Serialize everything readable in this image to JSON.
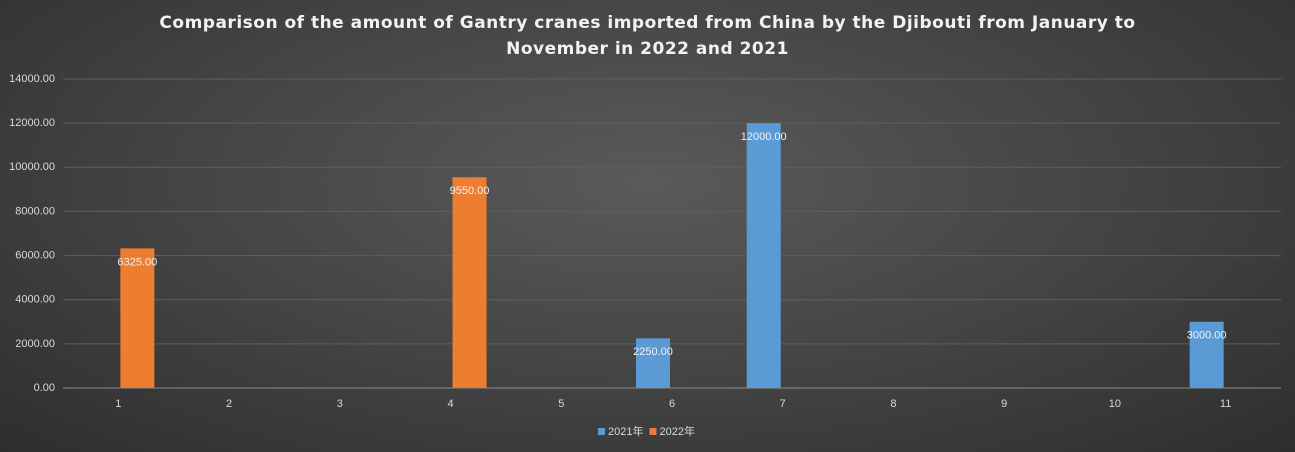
{
  "chart_data": {
    "type": "bar",
    "title": "Comparison of the amount of Gantry cranes imported from China by the Djibouti from January to November in 2022 and 2021",
    "categories": [
      "1",
      "2",
      "3",
      "4",
      "5",
      "6",
      "7",
      "8",
      "9",
      "10",
      "11"
    ],
    "series": [
      {
        "name": "2021年",
        "color": "#5b9bd5",
        "values": [
          null,
          null,
          null,
          null,
          null,
          2250,
          12000,
          null,
          null,
          null,
          3000
        ],
        "value_labels": [
          null,
          null,
          null,
          null,
          null,
          "2250.00",
          "12000.00",
          null,
          null,
          null,
          "3000.00"
        ]
      },
      {
        "name": "2022年",
        "color": "#ed7d31",
        "values": [
          6325,
          null,
          null,
          9550,
          null,
          null,
          null,
          null,
          null,
          null,
          null
        ],
        "value_labels": [
          "6325.00",
          null,
          null,
          "9550.00",
          null,
          null,
          null,
          null,
          null,
          null,
          null
        ]
      }
    ],
    "ylim": [
      0,
      14000
    ],
    "yticks": [
      {
        "value": 0,
        "label": "0.00"
      },
      {
        "value": 2000,
        "label": "2000.00"
      },
      {
        "value": 4000,
        "label": "4000.00"
      },
      {
        "value": 6000,
        "label": "6000.00"
      },
      {
        "value": 8000,
        "label": "8000.00"
      },
      {
        "value": 10000,
        "label": "10000.00"
      },
      {
        "value": 12000,
        "label": "12000.00"
      },
      {
        "value": 14000,
        "label": "14000.00"
      }
    ],
    "grid": true,
    "legend": "bottom"
  }
}
